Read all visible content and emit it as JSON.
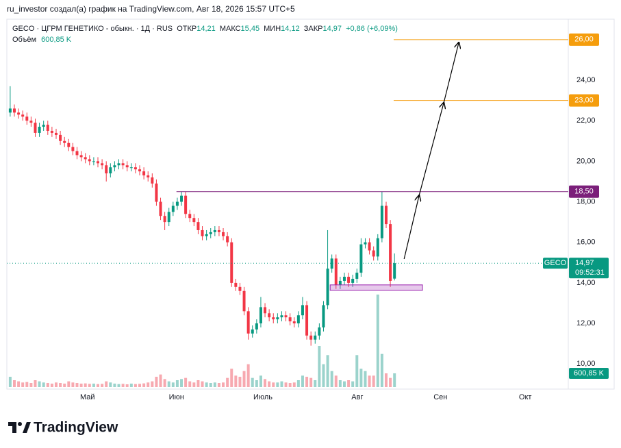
{
  "header": "ru_investor создал(а) график на TradingView.com, Авг 18, 2026 15:57 UTC+5",
  "logo": "TradingView",
  "chart_data": {
    "type": "candlestick",
    "legend": {
      "symbol": "GECO · ЦГРМ ГЕНЕТИКО - обыкн. · 1Д · RUS",
      "open_label": "ОТКР",
      "open": "14,21",
      "high_label": "МАКС",
      "high": "15,45",
      "low_label": "МИН",
      "low": "14,12",
      "close_label": "ЗАКР",
      "close": "14,97",
      "change": "+0,86 (+6,09%)",
      "volume_label": "Объём",
      "volume": "600,85 K"
    },
    "x": [
      0,
      1,
      2,
      3,
      4,
      5,
      6,
      7,
      8,
      9,
      10,
      11,
      12,
      13,
      14,
      15,
      16,
      17,
      18,
      19,
      20,
      21,
      22,
      23,
      24,
      25,
      26,
      27,
      28,
      29,
      30,
      31,
      32,
      33,
      34,
      35,
      36,
      37,
      38,
      39,
      40,
      41,
      42,
      43,
      44,
      45,
      46,
      47,
      48,
      49,
      50,
      51,
      52,
      53,
      54,
      55,
      56,
      57,
      58,
      59,
      60,
      61,
      62,
      63,
      64,
      65,
      66,
      67,
      68,
      69,
      70,
      71,
      72,
      73,
      74,
      75,
      76,
      77,
      78,
      79,
      80,
      81,
      82,
      83,
      84,
      85,
      86,
      87,
      88,
      89,
      90,
      91,
      92
    ],
    "open": [
      22.4,
      22.6,
      22.4,
      22.3,
      22.2,
      22.0,
      21.9,
      21.4,
      21.7,
      21.8,
      21.5,
      21.4,
      21.3,
      21.0,
      20.9,
      20.7,
      20.5,
      20.3,
      20.2,
      20.1,
      20.0,
      20.0,
      19.9,
      19.8,
      19.4,
      19.7,
      19.8,
      19.9,
      19.8,
      19.7,
      19.7,
      19.6,
      19.5,
      19.3,
      19.2,
      18.9,
      18.0,
      17.3,
      17.0,
      17.5,
      17.8,
      18.0,
      18.3,
      17.4,
      17.2,
      17.0,
      16.6,
      16.3,
      16.4,
      16.5,
      16.6,
      16.5,
      16.3,
      16.0,
      14.0,
      13.8,
      13.6,
      12.6,
      11.5,
      11.7,
      12.0,
      12.8,
      12.5,
      12.3,
      12.2,
      12.3,
      12.4,
      12.3,
      12.1,
      12.0,
      12.4,
      12.9,
      11.4,
      11.2,
      11.4,
      11.8,
      12.9,
      14.7,
      15.2,
      13.9,
      14.1,
      14.3,
      14.0,
      14.2,
      14.5,
      15.9,
      16.0,
      15.6,
      15.3,
      16.2,
      17.8,
      16.9,
      14.21
    ],
    "high": [
      23.7,
      22.8,
      22.6,
      22.5,
      22.4,
      22.2,
      22.1,
      21.9,
      22.0,
      22.0,
      21.7,
      21.6,
      21.5,
      21.2,
      21.1,
      20.9,
      20.7,
      20.5,
      20.4,
      20.3,
      20.2,
      20.2,
      20.1,
      20.0,
      19.9,
      20.0,
      20.1,
      20.1,
      20.0,
      19.9,
      19.9,
      19.8,
      19.7,
      19.5,
      19.4,
      19.1,
      18.2,
      17.5,
      17.7,
      18.0,
      18.2,
      18.5,
      18.5,
      17.6,
      17.4,
      17.2,
      16.8,
      16.6,
      16.7,
      16.8,
      16.8,
      16.7,
      16.5,
      16.2,
      14.2,
      14.0,
      13.8,
      12.8,
      11.9,
      12.2,
      13.3,
      13.0,
      12.7,
      12.5,
      12.5,
      12.6,
      12.6,
      12.5,
      12.3,
      12.6,
      13.3,
      13.1,
      11.6,
      11.6,
      12.0,
      13.1,
      16.6,
      15.4,
      15.4,
      14.3,
      14.5,
      14.5,
      14.4,
      14.7,
      16.2,
      16.2,
      16.2,
      15.8,
      16.4,
      18.5,
      18.0,
      17.1,
      15.45
    ],
    "low": [
      22.2,
      22.2,
      22.1,
      22.0,
      21.8,
      21.7,
      21.2,
      21.2,
      21.5,
      21.3,
      21.2,
      21.1,
      20.8,
      20.7,
      20.5,
      20.3,
      20.1,
      20.0,
      19.9,
      19.8,
      19.8,
      19.7,
      19.6,
      19.0,
      19.2,
      19.5,
      19.6,
      19.6,
      19.5,
      19.5,
      19.4,
      19.3,
      19.1,
      19.0,
      18.7,
      17.8,
      17.1,
      16.6,
      16.8,
      17.3,
      17.6,
      17.8,
      17.2,
      17.0,
      16.8,
      16.4,
      16.1,
      16.1,
      16.2,
      16.3,
      16.3,
      16.1,
      15.8,
      13.8,
      13.6,
      13.4,
      12.4,
      11.2,
      11.3,
      11.5,
      11.8,
      12.3,
      12.1,
      12.0,
      12.0,
      12.1,
      12.1,
      11.9,
      11.8,
      11.8,
      12.2,
      11.2,
      10.9,
      11.0,
      11.2,
      11.6,
      12.7,
      14.5,
      13.7,
      13.7,
      13.9,
      13.8,
      13.8,
      14.0,
      14.3,
      15.7,
      15.4,
      15.1,
      15.1,
      16.0,
      16.7,
      13.8,
      14.12
    ],
    "close": [
      22.6,
      22.4,
      22.3,
      22.2,
      22.0,
      21.9,
      21.4,
      21.7,
      21.8,
      21.5,
      21.4,
      21.3,
      21.0,
      20.9,
      20.7,
      20.5,
      20.3,
      20.2,
      20.1,
      20.0,
      20.0,
      19.9,
      19.8,
      19.4,
      19.7,
      19.8,
      19.9,
      19.8,
      19.7,
      19.7,
      19.6,
      19.5,
      19.3,
      19.2,
      18.9,
      18.0,
      17.3,
      17.0,
      17.5,
      17.8,
      18.0,
      18.3,
      17.4,
      17.2,
      17.0,
      16.6,
      16.3,
      16.4,
      16.5,
      16.6,
      16.5,
      16.3,
      16.0,
      14.0,
      13.8,
      13.6,
      12.6,
      11.5,
      11.7,
      12.0,
      12.8,
      12.5,
      12.3,
      12.2,
      12.3,
      12.4,
      12.3,
      12.1,
      12.0,
      12.4,
      12.9,
      11.4,
      11.2,
      11.4,
      11.8,
      12.9,
      14.7,
      15.2,
      13.9,
      14.1,
      14.3,
      14.0,
      14.2,
      14.5,
      15.9,
      16.0,
      15.6,
      15.3,
      16.2,
      17.8,
      16.9,
      14.1,
      14.97
    ],
    "up_color": "#089981",
    "down_color": "#f23645",
    "volume": [
      450,
      300,
      250,
      200,
      220,
      180,
      300,
      250,
      200,
      180,
      150,
      200,
      180,
      150,
      250,
      200,
      180,
      150,
      160,
      140,
      150,
      130,
      140,
      250,
      200,
      150,
      130,
      140,
      120,
      150,
      130,
      140,
      160,
      200,
      250,
      450,
      550,
      350,
      250,
      200,
      300,
      350,
      400,
      250,
      200,
      300,
      250,
      200,
      180,
      200,
      180,
      200,
      400,
      800,
      500,
      450,
      700,
      1000,
      400,
      300,
      500,
      350,
      250,
      200,
      200,
      250,
      200,
      180,
      200,
      300,
      500,
      450,
      400,
      300,
      1800,
      1000,
      1400,
      700,
      500,
      300,
      250,
      300,
      250,
      1400,
      800,
      700,
      500,
      500,
      4050,
      1450,
      600,
      400,
      600.85
    ],
    "volume_up_color": "#9bd3cc",
    "volume_down_color": "#f7a9b0",
    "volume_lim": [
      0,
      4500
    ],
    "xlim": [
      -0.8,
      133.6
    ],
    "xticks": [
      {
        "value": 18.5,
        "label": "Май"
      },
      {
        "value": 39.8,
        "label": "Июн"
      },
      {
        "value": 60.5,
        "label": "Июль"
      },
      {
        "value": 83.1,
        "label": "Авг"
      },
      {
        "value": 103,
        "label": "Сен"
      },
      {
        "value": 123.3,
        "label": "Окт"
      }
    ],
    "ylim": [
      8.86,
      26.94
    ],
    "yticks": [
      {
        "value": 10,
        "label": "10,00"
      },
      {
        "value": 12,
        "label": "12,00"
      },
      {
        "value": 14,
        "label": "14,00"
      },
      {
        "value": 16,
        "label": "16,00"
      },
      {
        "value": 18,
        "label": "18,00"
      },
      {
        "value": 20,
        "label": "20,00"
      },
      {
        "value": 22,
        "label": "22,00"
      },
      {
        "value": 24,
        "label": "24,00"
      }
    ],
    "grid": false,
    "last_price": {
      "symbol": "GECO",
      "price": "14,97",
      "timer": "09:52:31",
      "color": "#089981"
    },
    "levels": [
      {
        "value": 26,
        "label": "26,00",
        "from_x": 91.8,
        "color": "#f59d0c"
      },
      {
        "value": 23,
        "label": "23,00",
        "from_x": 91.8,
        "color": "#f59d0c"
      },
      {
        "value": 18.5,
        "label": "18,50",
        "from_x": 39.8,
        "color": "#7b1f7a"
      }
    ],
    "zone": {
      "x": [
        76.6,
        98.7
      ],
      "y": [
        13.63,
        13.9
      ],
      "color": "#9c27b0"
    },
    "arrow": {
      "x": [
        94.3,
        97.9,
        103.8,
        107.4
      ],
      "y": [
        15.18,
        18.32,
        22.89,
        25.86
      ]
    }
  }
}
